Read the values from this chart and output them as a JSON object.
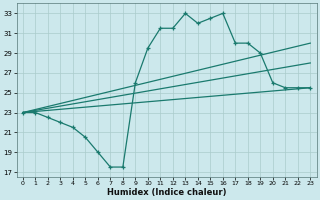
{
  "xlabel": "Humidex (Indice chaleur)",
  "background_color": "#cce8ec",
  "grid_color": "#aacccc",
  "line_color": "#1a7a6e",
  "xlim": [
    -0.5,
    23.5
  ],
  "ylim": [
    16.5,
    34
  ],
  "yticks": [
    17,
    19,
    21,
    23,
    25,
    27,
    29,
    31,
    33
  ],
  "xticks": [
    0,
    1,
    2,
    3,
    4,
    5,
    6,
    7,
    8,
    9,
    10,
    11,
    12,
    13,
    14,
    15,
    16,
    17,
    18,
    19,
    20,
    21,
    22,
    23
  ],
  "line1_x": [
    0,
    1,
    2,
    3,
    4,
    5,
    6,
    7,
    8,
    9,
    10,
    11,
    12,
    13,
    14,
    15,
    16,
    17,
    18,
    19,
    20,
    21,
    22,
    23
  ],
  "line1_y": [
    23,
    23,
    22.5,
    22,
    21.5,
    20.5,
    19,
    17.5,
    17.5,
    26,
    29.5,
    31.5,
    31.5,
    33,
    32,
    32.5,
    33,
    30,
    30,
    29,
    26,
    25.5,
    25.5,
    25.5
  ],
  "line2_x": [
    0,
    23
  ],
  "line2_y": [
    23,
    30.0
  ],
  "line3_x": [
    0,
    23
  ],
  "line3_y": [
    23,
    28.0
  ],
  "line4_x": [
    0,
    23
  ],
  "line4_y": [
    23,
    25.5
  ]
}
